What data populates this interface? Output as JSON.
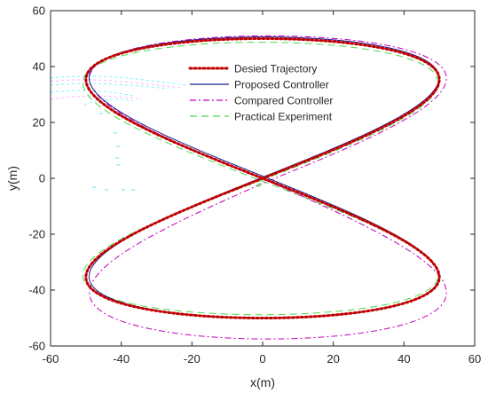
{
  "chart_data": {
    "type": "line",
    "title": "",
    "xlabel": "x(m)",
    "ylabel": "y(m)",
    "xlim": [
      -60,
      60
    ],
    "ylim": [
      -60,
      60
    ],
    "xticks": [
      -60,
      -40,
      -20,
      0,
      20,
      40,
      60
    ],
    "yticks": [
      -60,
      -40,
      -20,
      0,
      20,
      40,
      60
    ],
    "grid": false,
    "legend_position": "top-center",
    "trajectory_shape": "figure-eight",
    "x_amplitude": 50,
    "y_amplitude": 50,
    "series": [
      {
        "name": "Desied Trajectory",
        "color": "#c00000",
        "style": "dotted",
        "width": 3,
        "dx": 0,
        "dy": 0,
        "sx": 1.0,
        "sy": 1.0,
        "lowerShift": 0
      },
      {
        "name": "Proposed Controller",
        "color": "#1f1f8f",
        "style": "solid",
        "width": 1,
        "dx": 0.4,
        "dy": 0.6,
        "sx": 0.99,
        "sy": 1.0,
        "lowerShift": -0.6
      },
      {
        "name": "Compared Controller",
        "color": "#c000c0",
        "style": "dashdot",
        "width": 1,
        "dx": 1.5,
        "dy": -1.0,
        "sx": 1.01,
        "sy": 1.04,
        "lowerShift": -4.5
      },
      {
        "name": "Practical Experiment",
        "color": "#4cd94c",
        "style": "dashed",
        "width": 1,
        "dx": -0.6,
        "dy": -0.8,
        "sx": 1.005,
        "sy": 0.99,
        "lowerShift": 1.5
      }
    ],
    "start_marker": {
      "x": -1,
      "y": -3,
      "symbol": "*",
      "color": "#4cd94c"
    }
  }
}
